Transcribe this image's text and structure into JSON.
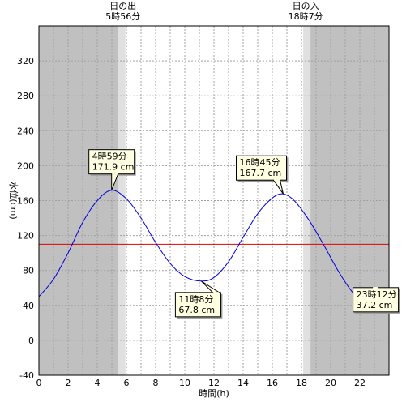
{
  "chart_data": {
    "type": "line",
    "xlabel": "時間(h)",
    "ylabel": "水位(cm)",
    "xlim": [
      0,
      24
    ],
    "ylim": [
      -40,
      360
    ],
    "x_ticks": [
      0,
      2,
      4,
      6,
      8,
      10,
      12,
      14,
      16,
      18,
      20,
      22
    ],
    "y_ticks": [
      -40,
      0,
      40,
      80,
      120,
      160,
      200,
      240,
      280,
      320
    ],
    "grid": true,
    "reference_line": {
      "value": 110,
      "color": "#e00000"
    },
    "line_color": "#0000dd",
    "series": [
      {
        "x": [
          0,
          1,
          2,
          3,
          4,
          4.983,
          6,
          7,
          8,
          9,
          10,
          11.133,
          12,
          13,
          14,
          15,
          16,
          16.75,
          17.5,
          18.5,
          19.5,
          20.5,
          21.5,
          22.5,
          23.2,
          24
        ],
        "values": [
          50,
          70,
          100,
          135,
          160,
          171.9,
          162,
          140,
          112,
          88,
          73,
          67.8,
          72,
          90,
          118,
          145,
          163,
          167.7,
          160,
          138,
          110,
          80,
          55,
          40,
          37.2,
          42
        ]
      }
    ],
    "sun": {
      "sunrise_label": "日の出",
      "sunrise_time": "5時56分",
      "sunrise_x": 5.933,
      "sunset_label": "日の入",
      "sunset_time": "18時7分",
      "sunset_x": 18.117,
      "twilight_hours": 0.5,
      "night_color": "#c0c0c0",
      "twilight_color": "#e0e0e0",
      "day_color": "#ffffff"
    },
    "annotations": [
      {
        "x": 4.983,
        "y": 171.9,
        "time": "4時59分",
        "value": "171.9 cm"
      },
      {
        "x": 11.133,
        "y": 67.8,
        "time": "11時8分",
        "value": "67.8 cm"
      },
      {
        "x": 16.75,
        "y": 167.7,
        "time": "16時45分",
        "value": "167.7 cm"
      },
      {
        "x": 23.2,
        "y": 37.2,
        "time": "23時12分",
        "value": "37.2 cm"
      }
    ]
  }
}
